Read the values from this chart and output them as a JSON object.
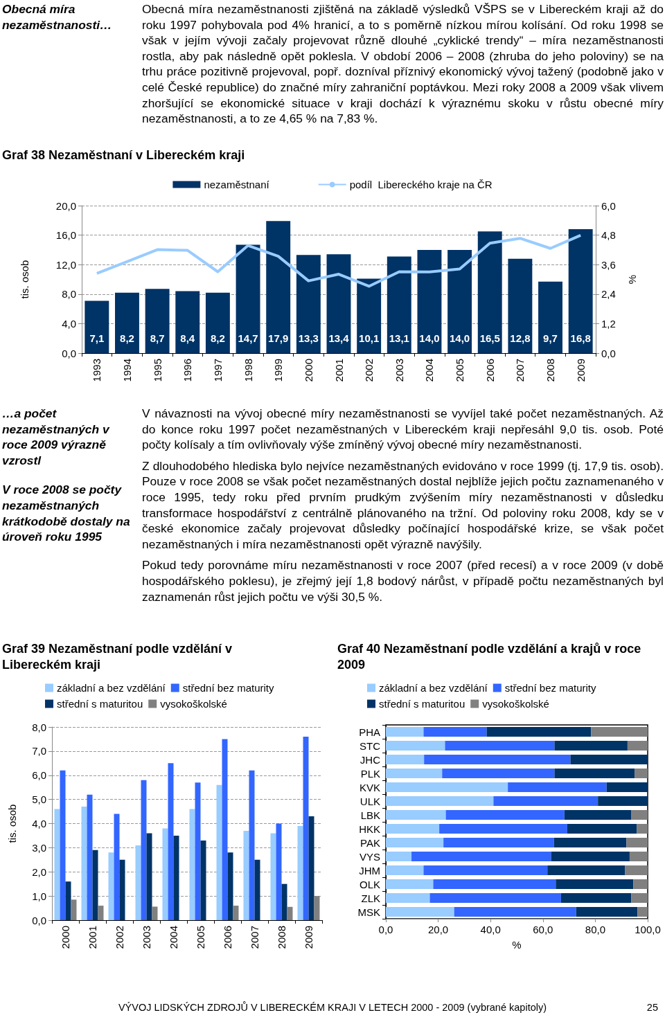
{
  "chart_data": [
    {
      "type": "bar",
      "title": "Graf 38 Nezaměstnaní v Libereckém kraji",
      "annotations": [
        "Obecná míra nezaměstnanosti…",
        "Obecná míra nezaměstnanosti zjištěná na základě výsledků VŠPS se v Libereckém kraji až do roku 1997 pohybovala pod 4% hranicí, a to s poměrně nízkou mírou kolísání. Od roku 1998 se však v jejím vývoji začaly projevovat různě dlouhé „cyklické trendy“ – míra nezaměstnanosti rostla, aby pak následně opět poklesla. V období 2006 – 2008 (zhruba do jeho poloviny) se na trhu práce pozitivně projevoval, popř. dozníval příznivý ekonomický vývoj tažený (podobně jako v celé České republice) do značné míry zahraniční poptávkou. Mezi roky 2008 a 2009 však vlivem zhoršující se ekonomické situace v kraji dochází k výraznému skoku v růstu obecné míry nezaměstnanosti, a to ze 4,65 % na 7,83 %."
      ],
      "categories": [
        "1993",
        "1994",
        "1995",
        "1996",
        "1997",
        "1998",
        "1999",
        "2000",
        "2001",
        "2002",
        "2003",
        "2004",
        "2005",
        "2006",
        "2007",
        "2008",
        "2009"
      ],
      "series": [
        {
          "name": "nezaměstnaní",
          "color": "#003366",
          "values": [
            7.1,
            8.2,
            8.7,
            8.4,
            8.2,
            14.7,
            17.9,
            13.3,
            13.4,
            10.1,
            13.1,
            14.0,
            14.0,
            16.5,
            12.8,
            9.7,
            16.8
          ],
          "value_labels": [
            "7,1",
            "8,2",
            "8,7",
            "8,4",
            "8,2",
            "14,7",
            "17,9",
            "13,3",
            "13,4",
            "10,1",
            "13,1",
            "14,0",
            "14,0",
            "16,5",
            "12,8",
            "9,7",
            "16,8"
          ]
        },
        {
          "name": "podíl  Libereckého kraje na ČR",
          "type": "line",
          "axis": "y2",
          "color": "#99ccff",
          "values": [
            3.24,
            3.72,
            4.21,
            4.18,
            3.31,
            4.38,
            3.94,
            2.94,
            3.21,
            2.72,
            3.31,
            3.3,
            3.42,
            4.47,
            4.67,
            4.26,
            4.79
          ]
        }
      ],
      "ylabel": "tis. osob",
      "y2label": "%",
      "ylim": [
        0,
        20
      ],
      "yticks": [
        {
          "value": 0,
          "label": "0,0"
        },
        {
          "value": 4,
          "label": "4,0"
        },
        {
          "value": 8,
          "label": "8,0"
        },
        {
          "value": 12,
          "label": "12,0"
        },
        {
          "value": 16,
          "label": "16,0"
        },
        {
          "value": 20,
          "label": "20,0"
        }
      ],
      "y2lim": [
        0,
        6
      ],
      "y2ticks": [
        {
          "value": 0,
          "label": "0,0"
        },
        {
          "value": 1.2,
          "label": "1,2"
        },
        {
          "value": 2.4,
          "label": "2,4"
        },
        {
          "value": 3.6,
          "label": "3,6"
        },
        {
          "value": 4.8,
          "label": "4,8"
        },
        {
          "value": 6,
          "label": "6,0"
        }
      ],
      "grid": "y",
      "legend": "top"
    },
    {
      "type": "bar",
      "title": "Graf 39 Nezaměstnaní podle vzdělání v Libereckém kraji",
      "annotations": [
        "…a počet nezaměstnaných v roce 2009 výrazně vzrostl",
        "V roce 2008 se počty nezaměstnaných krátkodobě dostaly na úroveň roku 1995",
        "V návaznosti na vývoj obecné míry nezaměstnanosti se vyvíjel také počet nezaměstnaných. Až do konce roku 1997 počet nezaměstnaných v Libereckém kraji nepřesáhl 9,0 tis. osob. Poté počty kolísaly a tím ovlivňovaly výše zmíněný vývoj obecné míry nezaměstnanosti.",
        "Z dlouhodobého hlediska bylo nejvíce nezaměstnaných evidováno v roce 1999 (tj. 17,9 tis. osob). Pouze v roce 2008 se však počet nezaměstnaných dostal nejblíže jejich počtu zaznamenaného v roce 1995, tedy roku před prvním prudkým zvýšením míry nezaměstnanosti v důsledku transformace hospodářství z centrálně plánovaného na tržní. Od poloviny roku 2008, kdy se v české ekonomice začaly projevovat důsledky počínající hospodářské krize, se však počet nezaměstnaných i míra nezaměstnanosti opět výrazně navýšily.",
        "Pokud tedy porovnáme míru nezaměstnanosti v roce 2007 (před recesí) a v roce 2009 (v době hospodářského poklesu), je zřejmý její 1,8 bodový nárůst, v případě počtu nezaměstnaných byl zaznamenán růst jejich počtu ve výši 30,5 %."
      ],
      "categories": [
        "2000",
        "2001",
        "2002",
        "2003",
        "2004",
        "2005",
        "2006",
        "2007",
        "2008",
        "2009"
      ],
      "series": [
        {
          "name": "základní a bez vzdělání",
          "color": "#99ccff",
          "values": [
            4.6,
            4.7,
            2.8,
            3.1,
            3.8,
            4.6,
            5.6,
            3.7,
            3.6,
            3.9
          ]
        },
        {
          "name": "střední bez maturity",
          "color": "#3366ff",
          "values": [
            6.2,
            5.2,
            4.4,
            5.8,
            6.5,
            5.7,
            7.5,
            6.2,
            4.0,
            7.6
          ]
        },
        {
          "name": "střední s maturitou",
          "color": "#003366",
          "values": [
            1.6,
            2.9,
            2.5,
            3.6,
            3.5,
            3.3,
            2.8,
            2.5,
            1.5,
            4.3
          ]
        },
        {
          "name": "vysokoškolské",
          "color": "#808080",
          "values": [
            0.85,
            0.6,
            null,
            0.56,
            null,
            null,
            0.6,
            null,
            0.55,
            1.0
          ]
        }
      ],
      "ylabel": "tis. osob",
      "ylim": [
        0,
        8
      ],
      "yticks": [
        {
          "value": 0,
          "label": "0,0"
        },
        {
          "value": 1,
          "label": "1,0"
        },
        {
          "value": 2,
          "label": "2,0"
        },
        {
          "value": 3,
          "label": "3,0"
        },
        {
          "value": 4,
          "label": "4,0"
        },
        {
          "value": 5,
          "label": "5,0"
        },
        {
          "value": 6,
          "label": "6,0"
        },
        {
          "value": 7,
          "label": "7,0"
        },
        {
          "value": 8,
          "label": "8,0"
        }
      ],
      "grid": "y",
      "legend": "top"
    },
    {
      "type": "bar",
      "title": "Graf 40 Nezaměstnaní podle vzdělání a krajů v roce 2009",
      "annotations": [
        "VÝVOJ LIDSKÝCH ZDROJŮ V LIBERECKÉM KRAJI V LETECH 2000 - 2009 (vybrané kapitoly)",
        "25"
      ],
      "orientation": "horizontal",
      "stacked": true,
      "categories": [
        "PHA",
        "STC",
        "JHC",
        "PLK",
        "KVK",
        "ULK",
        "LBK",
        "HKK",
        "PAK",
        "VYS",
        "JHM",
        "OLK",
        "ZLK",
        "MSK"
      ],
      "series": [
        {
          "name": "základní a bez vzdělání",
          "color": "#99ccff",
          "values": [
            14.4,
            22.6,
            14.6,
            21.5,
            46.6,
            41.1,
            22.9,
            20.4,
            22.0,
            9.8,
            14.4,
            18.1,
            16.8,
            26.1
          ]
        },
        {
          "name": "střední bez maturity",
          "color": "#3366ff",
          "values": [
            24.1,
            41.8,
            55.9,
            42.9,
            37.7,
            39.9,
            45.3,
            48.9,
            42.2,
            53.3,
            47.3,
            46.8,
            50.1,
            46.6
          ]
        },
        {
          "name": "střední s maturitou",
          "color": "#003366",
          "values": [
            39.9,
            27.9,
            29.5,
            30.6,
            15.7,
            19.0,
            25.6,
            26.5,
            27.7,
            30.0,
            29.6,
            29.6,
            26.8,
            23.4
          ]
        },
        {
          "name": "vysokoškolské",
          "color": "#808080",
          "values": [
            21.6,
            7.7,
            0,
            5.0,
            0,
            0,
            6.2,
            4.2,
            8.1,
            6.9,
            8.7,
            5.5,
            6.3,
            3.9
          ]
        }
      ],
      "xlabel": "%",
      "xlim": [
        0,
        100
      ],
      "xticks": [
        {
          "value": 0,
          "label": "0,0"
        },
        {
          "value": 20,
          "label": "20,0"
        },
        {
          "value": 40,
          "label": "40,0"
        },
        {
          "value": 60,
          "label": "60,0"
        },
        {
          "value": 80,
          "label": "80,0"
        },
        {
          "value": 100,
          "label": "100,0"
        }
      ],
      "legend": "top"
    }
  ]
}
